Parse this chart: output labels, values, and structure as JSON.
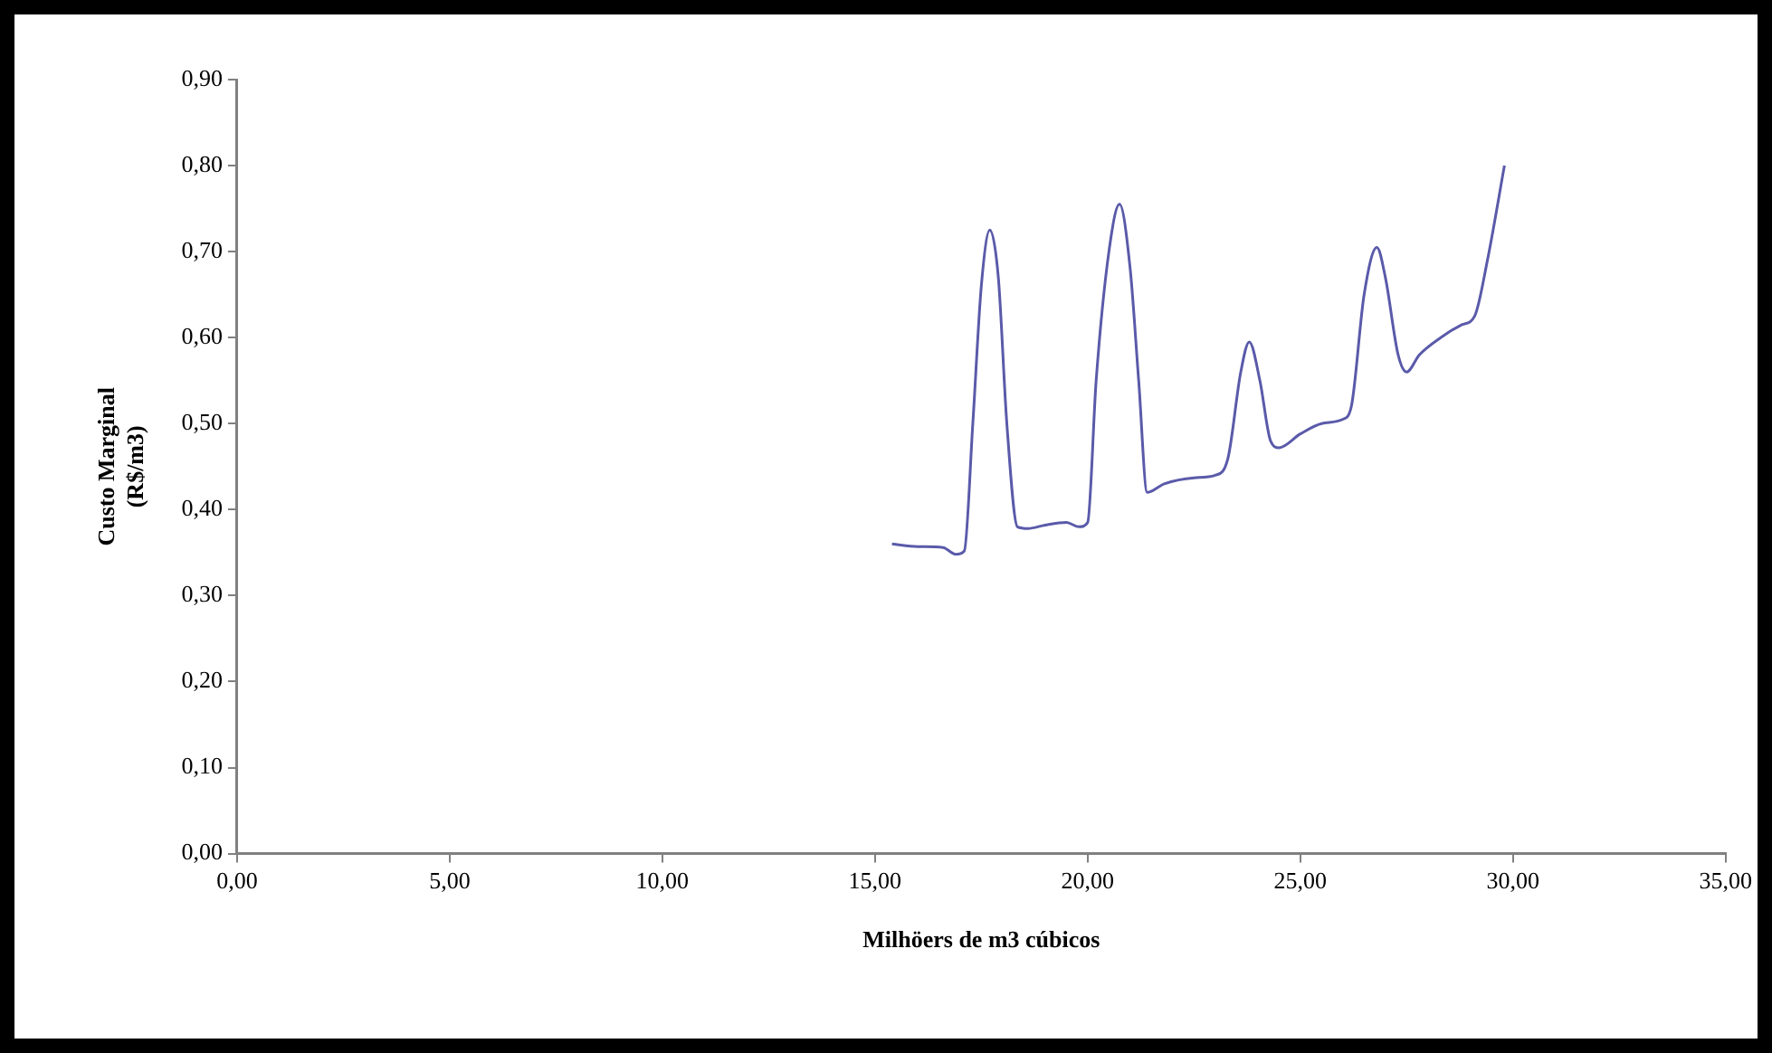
{
  "chart_data": {
    "type": "line",
    "xlabel": "Milhöers de m3 cúbicos",
    "ylabel": "Custo Marginal (R$/m3)",
    "xlim": [
      0,
      35
    ],
    "xticks": [
      {
        "value": 0,
        "label": "0,00"
      },
      {
        "value": 5,
        "label": "5,00"
      },
      {
        "value": 10,
        "label": "10,00"
      },
      {
        "value": 15,
        "label": "15,00"
      },
      {
        "value": 20,
        "label": "20,00"
      },
      {
        "value": 25,
        "label": "25,00"
      },
      {
        "value": 30,
        "label": "30,00"
      },
      {
        "value": 35,
        "label": "35,00"
      }
    ],
    "ylim": [
      0,
      0.9
    ],
    "yticks": [
      {
        "value": 0,
        "label": "0,00"
      },
      {
        "value": 0.1,
        "label": "0,10"
      },
      {
        "value": 0.2,
        "label": "0,20"
      },
      {
        "value": 0.3,
        "label": "0,30"
      },
      {
        "value": 0.4,
        "label": "0,40"
      },
      {
        "value": 0.5,
        "label": "0,50"
      },
      {
        "value": 0.6,
        "label": "0,60"
      },
      {
        "value": 0.7,
        "label": "0,70"
      },
      {
        "value": 0.8,
        "label": "0,80"
      },
      {
        "value": 0.9,
        "label": "0,90"
      }
    ],
    "grid": false,
    "legend": false,
    "marker": "none",
    "line_style": "solid",
    "series": [
      {
        "color": "#5a5aaa",
        "x": [
          15.4,
          16.0,
          16.6,
          16.9,
          17.1,
          17.3,
          17.5,
          17.7,
          17.9,
          18.1,
          18.35,
          18.6,
          19.0,
          19.5,
          19.8,
          20.0,
          20.2,
          20.5,
          20.75,
          21.0,
          21.2,
          21.4,
          21.8,
          22.5,
          23.0,
          23.3,
          23.6,
          23.8,
          24.05,
          24.3,
          24.5,
          25.0,
          25.5,
          26.0,
          26.2,
          26.5,
          26.8,
          27.0,
          27.3,
          27.5,
          27.8,
          28.3,
          28.8,
          29.1,
          29.4,
          29.8
        ],
        "values": [
          0.36,
          0.357,
          0.356,
          0.348,
          0.352,
          0.5,
          0.66,
          0.725,
          0.67,
          0.5,
          0.38,
          0.378,
          0.382,
          0.385,
          0.38,
          0.385,
          0.55,
          0.7,
          0.755,
          0.68,
          0.55,
          0.42,
          0.43,
          0.437,
          0.44,
          0.46,
          0.56,
          0.595,
          0.55,
          0.48,
          0.472,
          0.488,
          0.5,
          0.505,
          0.52,
          0.65,
          0.705,
          0.67,
          0.58,
          0.56,
          0.58,
          0.6,
          0.615,
          0.625,
          0.69,
          0.8
        ]
      }
    ]
  }
}
